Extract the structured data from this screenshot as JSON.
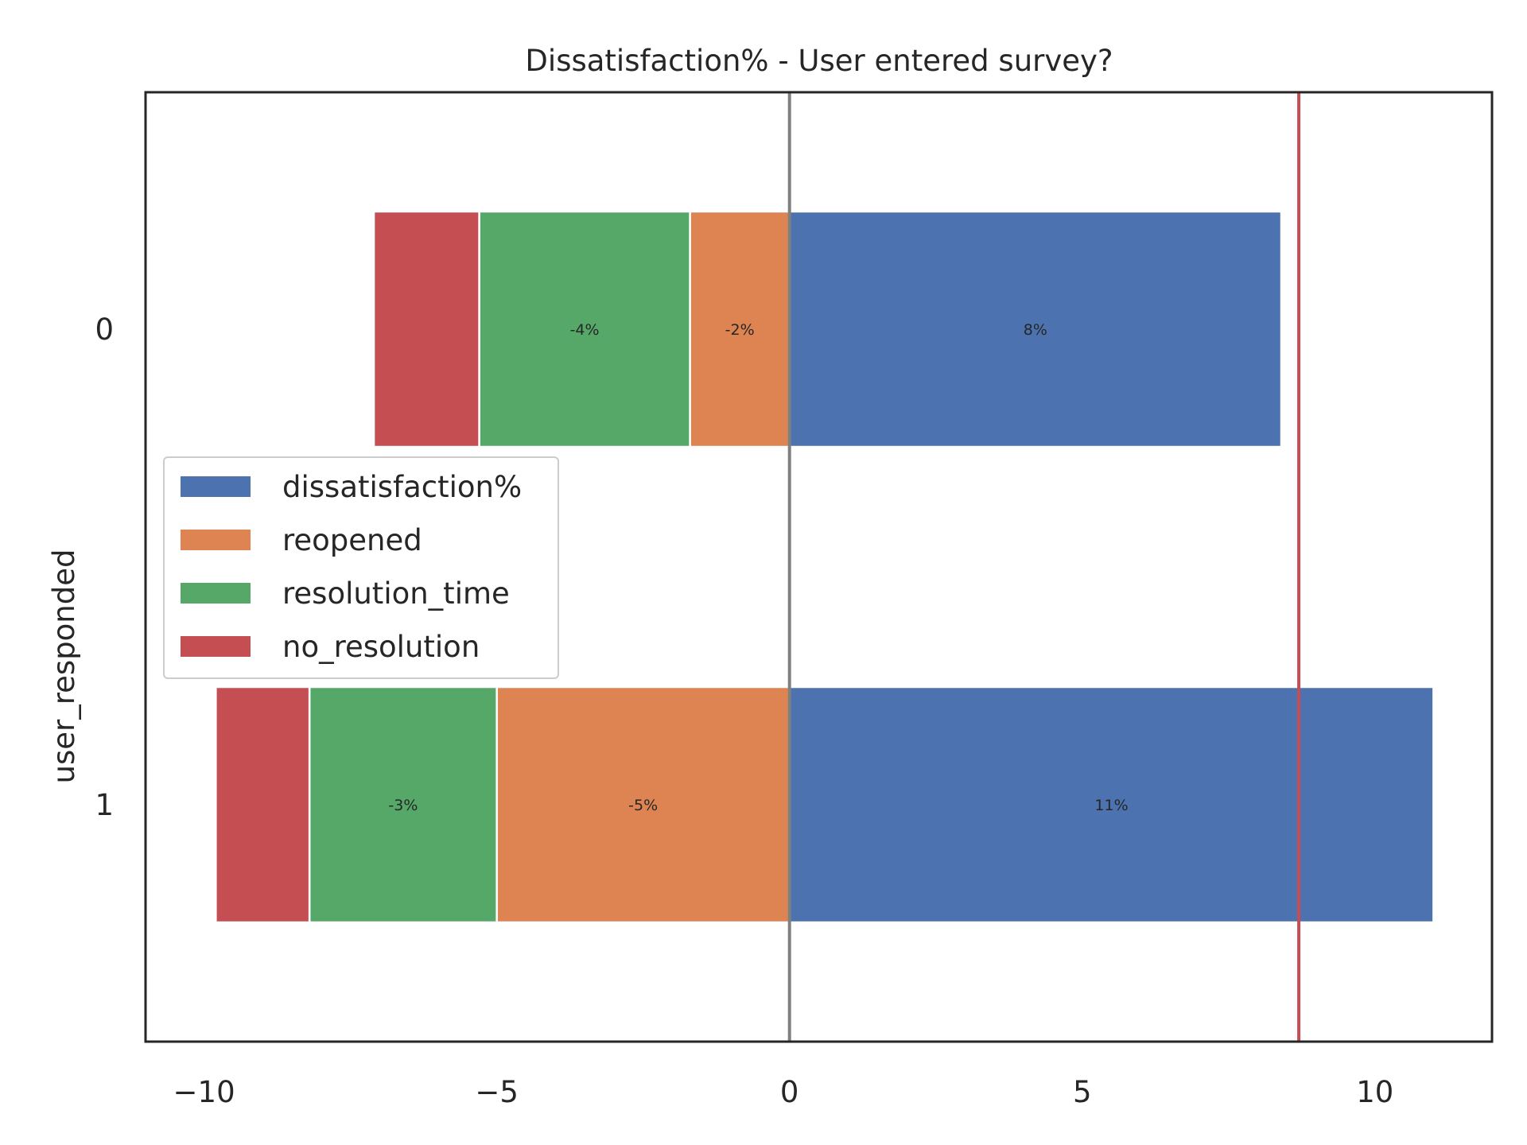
{
  "chart_data": {
    "type": "bar",
    "orientation": "horizontal",
    "stacked": "diverging",
    "title": "Dissatisfaction% - User entered survey?",
    "xlabel": "",
    "ylabel": "user_responded",
    "categories": [
      "0",
      "1"
    ],
    "series": [
      {
        "name": "dissatisfaction%",
        "color": "#4c72b0",
        "values": [
          8.4,
          11.0
        ],
        "labels": [
          "8%",
          "11%"
        ]
      },
      {
        "name": "reopened",
        "color": "#dd8452",
        "values": [
          -1.7,
          -5.0
        ],
        "labels": [
          "-2%",
          "-5%"
        ]
      },
      {
        "name": "resolution_time",
        "color": "#55a868",
        "values": [
          -3.6,
          -3.2
        ],
        "labels": [
          "-4%",
          "-3%"
        ]
      },
      {
        "name": "no_resolution",
        "color": "#c44e52",
        "values": [
          -1.8,
          -1.6
        ],
        "labels": [
          "",
          ""
        ]
      }
    ],
    "xlim": [
      -11,
      12
    ],
    "xticks": [
      -10,
      -5,
      0,
      5,
      10
    ],
    "xtick_labels": [
      "−10",
      "−5",
      "0",
      "5",
      "10"
    ],
    "reference_lines": [
      {
        "x": 0,
        "color": "#808080"
      },
      {
        "x": 8.7,
        "color": "#c44e52"
      }
    ],
    "legend_position": "center-left",
    "grid": false
  }
}
